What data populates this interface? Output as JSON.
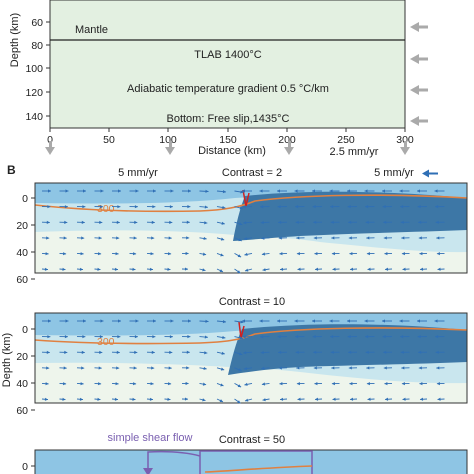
{
  "panelA": {
    "ylabel": "Depth (km)",
    "y_ticks": [
      "60",
      "80",
      "100",
      "120",
      "140"
    ],
    "x_ticks": [
      "0",
      "50",
      "100",
      "150",
      "200",
      "250",
      "300"
    ],
    "xlabel": "Distance (km)",
    "mantle_label": "Mantle",
    "tlab_label": "TLAB 1400°C",
    "gradient_label": "Adiabatic temperature gradient 0.5 °C/km",
    "bottom_label": "Bottom: Free slip,1435°C",
    "velocity_label": "2.5 mm/yr",
    "colors": {
      "fill": "#e3f0e1",
      "arrow": "#aaaaaa"
    }
  },
  "panelB": {
    "letter": "B",
    "ylabel": "Depth (km)",
    "y_ticks": [
      "0",
      "20",
      "40",
      "60"
    ],
    "left_velocity": "5 mm/yr",
    "right_velocity": "5 mm/yr",
    "isotherm_label": "300",
    "callout_label": "simple shear flow",
    "subpanels": [
      {
        "title": "Contrast = 2"
      },
      {
        "title": "Contrast = 10"
      },
      {
        "title": "Contrast = 50"
      }
    ],
    "colors": {
      "dark": "#3d77a6",
      "medium": "#8ec5e4",
      "light": "#c9e6ee",
      "bg": "#eef5ec",
      "isotherm": "#e08040",
      "arrow": "#2f6fb5",
      "callout": "#7a5fb0",
      "accent_red": "#d02020"
    }
  }
}
